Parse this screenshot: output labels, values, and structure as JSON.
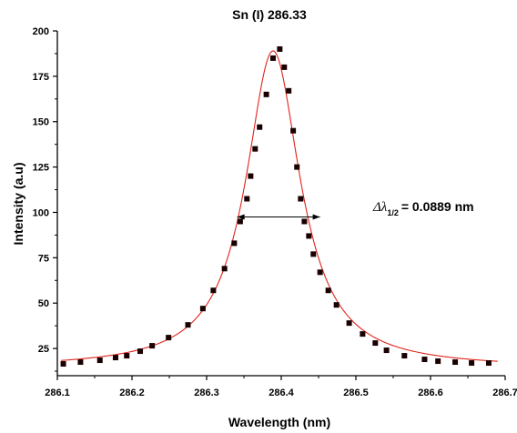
{
  "chart_data": {
    "type": "scatter",
    "title": "Sn (I) 286.33",
    "xlabel": "Wavelength (nm)",
    "ylabel": "Intensity (a.u)",
    "xlim": [
      286.1,
      286.7
    ],
    "ylim": [
      10,
      200
    ],
    "xticks": [
      "286.1",
      "286.2",
      "286.3",
      "286.4",
      "286.5",
      "286.6",
      "286.7"
    ],
    "yticks": [
      "25",
      "50",
      "75",
      "100",
      "125",
      "150",
      "175",
      "200"
    ],
    "grid": false,
    "series": [
      {
        "kind": "markers",
        "marker": "square",
        "color": "#1a0000",
        "x": [
          286.108,
          286.131,
          286.157,
          286.178,
          286.193,
          286.211,
          286.227,
          286.249,
          286.275,
          286.295,
          286.309,
          286.324,
          286.337,
          286.345,
          286.354,
          286.359,
          286.365,
          286.371,
          286.38,
          286.389,
          286.398,
          286.404,
          286.41,
          286.416,
          286.421,
          286.426,
          286.431,
          286.437,
          286.443,
          286.452,
          286.463,
          286.474,
          286.491,
          286.509,
          286.526,
          286.541,
          286.565,
          286.592,
          286.61,
          286.633,
          286.655,
          286.678
        ],
        "y": [
          16.5,
          17.5,
          18.5,
          20,
          21,
          23.5,
          26.5,
          31,
          38,
          47,
          57,
          69,
          83,
          95,
          107.5,
          120,
          135,
          147,
          165,
          185,
          190,
          180,
          167,
          145,
          125,
          107.5,
          95,
          87,
          77,
          67,
          57,
          49,
          39,
          33,
          28,
          24,
          21,
          19,
          18,
          17.5,
          17,
          17
        ]
      },
      {
        "kind": "fit-line",
        "color": "#e0241b",
        "model": "lorentzian",
        "center": 286.389,
        "fwhm": 0.0889,
        "peak": 189,
        "baseline": 14.2
      }
    ],
    "annotations": [
      {
        "text_main": "Δλ",
        "text_sub": "1/2",
        "text_value": "= 0.0889 nm",
        "arrow_y": 97.5,
        "arrow_x1": 286.341,
        "arrow_x2": 286.452
      }
    ],
    "colors": {
      "markers": "#1a0000",
      "fit": "#e0241b",
      "axis": "#000000"
    }
  }
}
